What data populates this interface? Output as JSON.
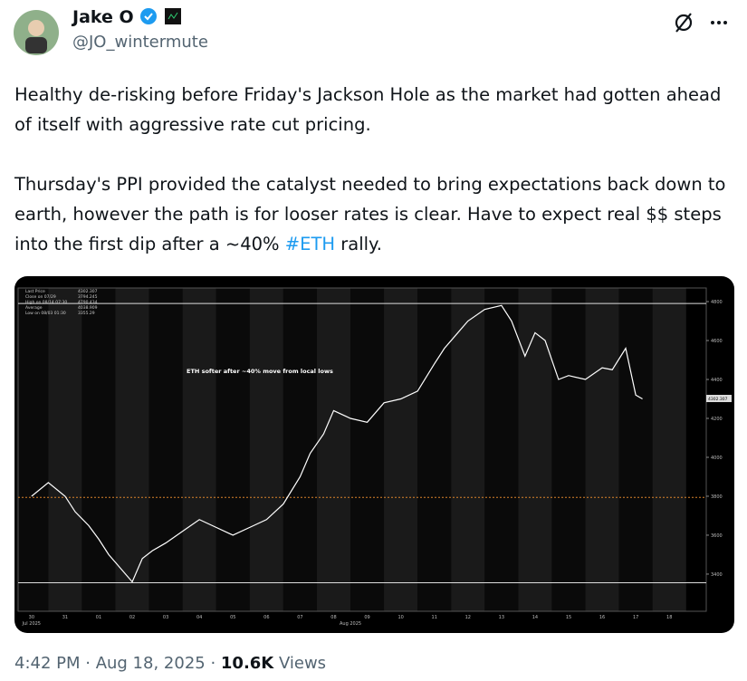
{
  "tweet": {
    "name": "Jake O",
    "handle": "@JO_wintermute",
    "paragraphs": [
      "Healthy de-risking before Friday's Jackson Hole as the market had gotten ahead of itself with aggressive rate cut pricing."
    ],
    "paragraph2": {
      "before": "Thursday's PPI provided the catalyst needed to bring  expectations back down to earth, however the path is for looser rates is clear. Have to expect real $$ steps into the first dip after a ~40% ",
      "hashtag": "#ETH",
      "after": " rally."
    },
    "time": "4:42 PM · Aug 18, 2025 · ",
    "views_count": "10.6K",
    "views_label": " Views"
  },
  "chart_data": {
    "type": "line",
    "annotation": "ETH softer after ~40% move from local lows",
    "legend": [
      {
        "label": "Last Price",
        "value": 4302.307
      },
      {
        "label": "Close on 07/29",
        "value": 3794.245
      },
      {
        "label": "High on 08/14 07:30",
        "value": 4790.434
      },
      {
        "label": "Average",
        "value": 4038.909
      },
      {
        "label": "Low on 08/03 01:30",
        "value": 3355.29
      }
    ],
    "month_labels": [
      "Jul 2025",
      "Aug 2025"
    ],
    "x": [
      0,
      0.5,
      1,
      1.3,
      1.7,
      2,
      2.3,
      2.6,
      3,
      3.3,
      3.6,
      4,
      4.5,
      5,
      5.5,
      6,
      6.5,
      7,
      7.5,
      8,
      8.3,
      8.7,
      9,
      9.5,
      10,
      10.5,
      11,
      11.5,
      12,
      12.3,
      12.7,
      13,
      13.5,
      14,
      14.3,
      14.7,
      15,
      15.3,
      15.7,
      16,
      16.5,
      17,
      17.3,
      17.7,
      18,
      18.2
    ],
    "series": [
      {
        "name": "Last Price",
        "color": "#ffffff",
        "values": [
          3800,
          3870,
          3800,
          3720,
          3650,
          3580,
          3500,
          3440,
          3360,
          3480,
          3520,
          3560,
          3620,
          3680,
          3640,
          3600,
          3640,
          3680,
          3760,
          3900,
          4020,
          4120,
          4240,
          4200,
          4180,
          4280,
          4300,
          4340,
          4480,
          4560,
          4640,
          4700,
          4760,
          4780,
          4700,
          4520,
          4640,
          4600,
          4400,
          4420,
          4400,
          4460,
          4450,
          4560,
          4320,
          4300
        ]
      }
    ],
    "xlim": [
      -0.4,
      20.1
    ],
    "xticks": [
      {
        "value": 0,
        "label": "30"
      },
      {
        "value": 1,
        "label": "31"
      },
      {
        "value": 2,
        "label": "01"
      },
      {
        "value": 3,
        "label": "02"
      },
      {
        "value": 4,
        "label": "03"
      },
      {
        "value": 5,
        "label": "04"
      },
      {
        "value": 6,
        "label": "05"
      },
      {
        "value": 7,
        "label": "06"
      },
      {
        "value": 8,
        "label": "07"
      },
      {
        "value": 9,
        "label": "08"
      },
      {
        "value": 10,
        "label": "09"
      },
      {
        "value": 11,
        "label": "10"
      },
      {
        "value": 12,
        "label": "11"
      },
      {
        "value": 13,
        "label": "12"
      },
      {
        "value": 14,
        "label": "13"
      },
      {
        "value": 15,
        "label": "14"
      },
      {
        "value": 16,
        "label": "15"
      },
      {
        "value": 17,
        "label": "16"
      },
      {
        "value": 18,
        "label": "17"
      },
      {
        "value": 19,
        "label": "18"
      }
    ],
    "ylim": [
      3209,
      4870
    ],
    "yticks": [
      3400,
      3600,
      3800,
      4000,
      4200,
      4400,
      4600,
      4800
    ]
  }
}
